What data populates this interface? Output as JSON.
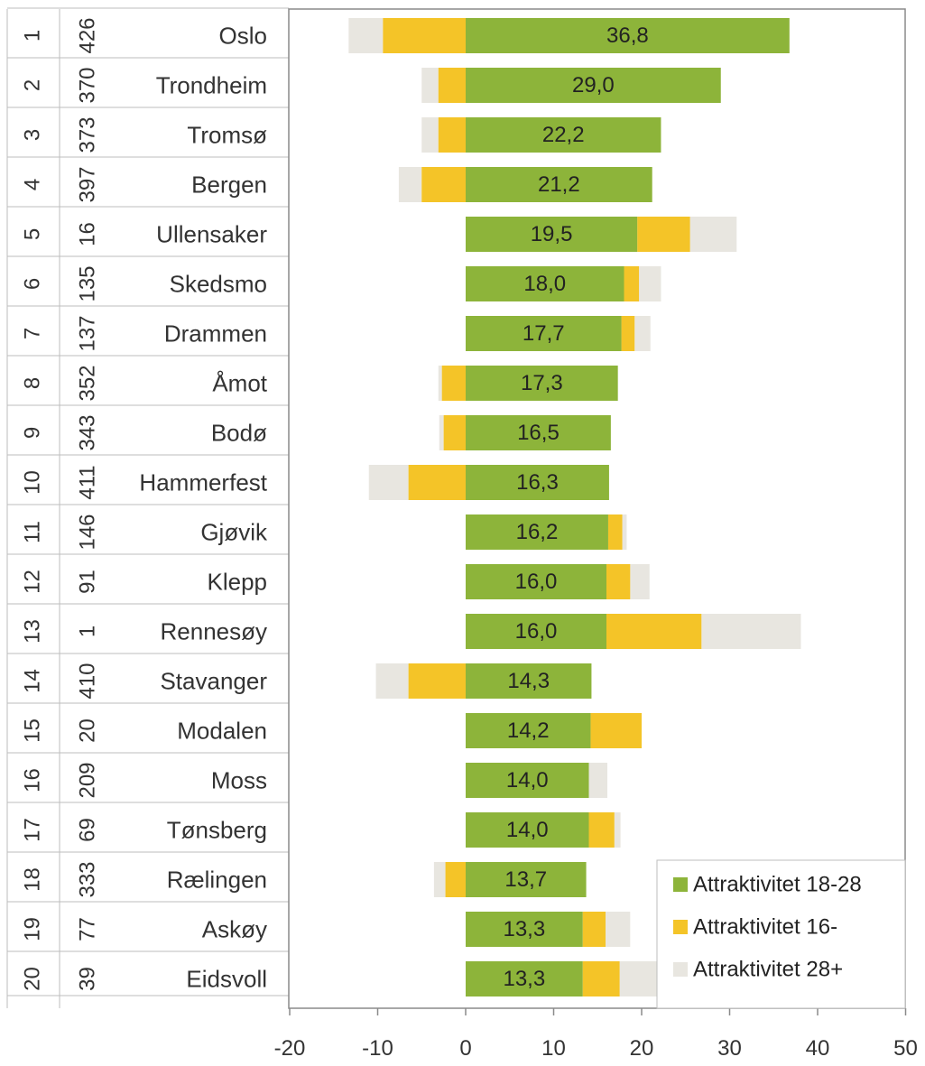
{
  "chart_data": {
    "type": "bar",
    "orientation": "horizontal",
    "stacking": "stacked-diverging",
    "xlim": [
      -20,
      50
    ],
    "x_ticks": [
      "-20",
      "-10",
      "0",
      "10",
      "20",
      "30",
      "40",
      "50"
    ],
    "x_tick_values": [
      -20,
      -10,
      0,
      10,
      20,
      30,
      40,
      50
    ],
    "grid": false,
    "legend_position": "bottom-right",
    "table_columns": [
      "rank",
      "number",
      "municipality"
    ],
    "rows": [
      {
        "rank": "1",
        "number": "426",
        "name": "Oslo",
        "label": "36,8"
      },
      {
        "rank": "2",
        "number": "370",
        "name": "Trondheim",
        "label": "29,0"
      },
      {
        "rank": "3",
        "number": "373",
        "name": "Tromsø",
        "label": "22,2"
      },
      {
        "rank": "4",
        "number": "397",
        "name": "Bergen",
        "label": "21,2"
      },
      {
        "rank": "5",
        "number": "16",
        "name": "Ullensaker",
        "label": "19,5"
      },
      {
        "rank": "6",
        "number": "135",
        "name": "Skedsmo",
        "label": "18,0"
      },
      {
        "rank": "7",
        "number": "137",
        "name": "Drammen",
        "label": "17,7"
      },
      {
        "rank": "8",
        "number": "352",
        "name": "Åmot",
        "label": "17,3"
      },
      {
        "rank": "9",
        "number": "343",
        "name": "Bodø",
        "label": "16,5"
      },
      {
        "rank": "10",
        "number": "411",
        "name": "Hammerfest",
        "label": "16,3"
      },
      {
        "rank": "11",
        "number": "146",
        "name": "Gjøvik",
        "label": "16,2"
      },
      {
        "rank": "12",
        "number": "91",
        "name": "Klepp",
        "label": "16,0"
      },
      {
        "rank": "13",
        "number": "1",
        "name": "Rennesøy",
        "label": "16,0"
      },
      {
        "rank": "14",
        "number": "410",
        "name": "Stavanger",
        "label": "14,3"
      },
      {
        "rank": "15",
        "number": "20",
        "name": "Modalen",
        "label": "14,2"
      },
      {
        "rank": "16",
        "number": "209",
        "name": "Moss",
        "label": "14,0"
      },
      {
        "rank": "17",
        "number": "69",
        "name": "Tønsberg",
        "label": "14,0"
      },
      {
        "rank": "18",
        "number": "333",
        "name": "Rælingen",
        "label": "13,7"
      },
      {
        "rank": "19",
        "number": "77",
        "name": "Askøy",
        "label": "13,3"
      },
      {
        "rank": "20",
        "number": "39",
        "name": "Eidsvoll",
        "label": "13,3"
      }
    ],
    "series": [
      {
        "name": "Attraktivitet 18-28",
        "color": "#8db43a",
        "values": [
          36.8,
          29.0,
          22.2,
          21.2,
          19.5,
          18.0,
          17.7,
          17.3,
          16.5,
          16.3,
          16.2,
          16.0,
          16.0,
          14.3,
          14.2,
          14.0,
          14.0,
          13.7,
          13.3,
          13.3
        ]
      },
      {
        "name": "Attraktivitet 16-",
        "color": "#f4c428",
        "values": [
          -9.4,
          -3.1,
          -3.1,
          -5.0,
          6.0,
          1.7,
          1.5,
          -2.7,
          -2.5,
          -6.5,
          1.6,
          2.7,
          10.8,
          -6.5,
          5.8,
          0,
          2.9,
          -2.3,
          2.6,
          4.2
        ]
      },
      {
        "name": "Attraktivitet 28+",
        "color": "#e8e6e0",
        "values": [
          -3.9,
          -1.9,
          -1.9,
          -2.6,
          5.3,
          2.5,
          1.8,
          -0.4,
          -0.5,
          -4.5,
          0.5,
          2.2,
          11.3,
          -3.7,
          0,
          2.1,
          0.7,
          -1.3,
          2.8,
          4.3
        ]
      }
    ]
  }
}
